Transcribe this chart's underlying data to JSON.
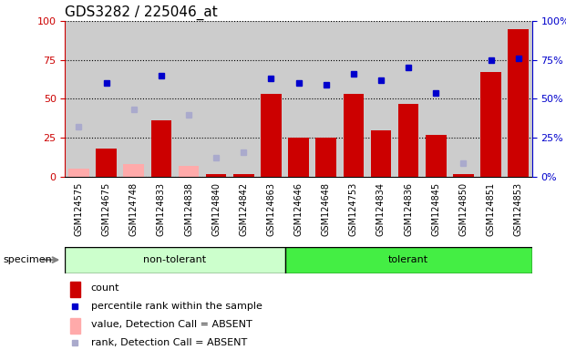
{
  "title": "GDS3282 / 225046_at",
  "samples": [
    "GSM124575",
    "GSM124675",
    "GSM124748",
    "GSM124833",
    "GSM124838",
    "GSM124840",
    "GSM124842",
    "GSM124863",
    "GSM124646",
    "GSM124648",
    "GSM124753",
    "GSM124834",
    "GSM124836",
    "GSM124845",
    "GSM124850",
    "GSM124851",
    "GSM124853"
  ],
  "n_nontolerant": 8,
  "count_values": [
    null,
    18,
    null,
    36,
    null,
    2,
    2,
    53,
    25,
    25,
    53,
    30,
    47,
    27,
    2,
    67,
    95
  ],
  "count_absent": [
    5,
    null,
    8,
    null,
    7,
    null,
    null,
    null,
    null,
    null,
    null,
    null,
    null,
    null,
    null,
    null,
    null
  ],
  "rank_values": [
    null,
    60,
    null,
    65,
    null,
    null,
    null,
    63,
    60,
    59,
    66,
    62,
    70,
    54,
    null,
    75,
    76
  ],
  "rank_absent": [
    32,
    null,
    43,
    null,
    40,
    12,
    16,
    null,
    null,
    null,
    null,
    null,
    null,
    null,
    9,
    null,
    null
  ],
  "ylim": [
    0,
    100
  ],
  "bar_color": "#cc0000",
  "bar_absent_color": "#ffaaaa",
  "rank_color": "#0000cc",
  "rank_absent_color": "#aaaacc",
  "color_nontolerant": "#ccffcc",
  "color_tolerant": "#44ee44",
  "bg_color": "#cccccc",
  "plot_bg": "#ffffff",
  "grid_color": "#000000",
  "left_axis_color": "#cc0000",
  "right_axis_color": "#0000cc",
  "legend_items": [
    {
      "label": "count",
      "color": "#cc0000",
      "type": "bar"
    },
    {
      "label": "percentile rank within the sample",
      "color": "#0000cc",
      "type": "square"
    },
    {
      "label": "value, Detection Call = ABSENT",
      "color": "#ffaaaa",
      "type": "bar"
    },
    {
      "label": "rank, Detection Call = ABSENT",
      "color": "#aaaacc",
      "type": "square"
    }
  ],
  "title_fontsize": 11,
  "tick_fontsize": 7,
  "axis_fontsize": 8,
  "legend_fontsize": 8
}
